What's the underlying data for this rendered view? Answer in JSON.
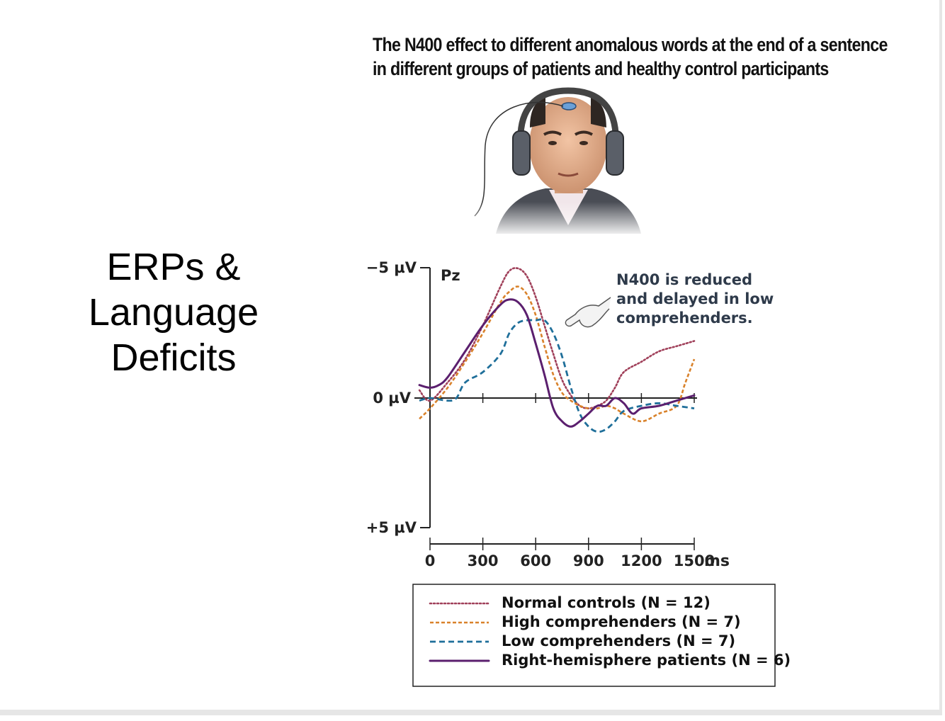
{
  "slide": {
    "title_lines": [
      "ERPs &",
      "Language",
      "Deficits"
    ]
  },
  "figure": {
    "title_lines": [
      "The N400 effect to different anomalous words at the end of a sentence",
      "in different groups of patients and healthy control participants"
    ],
    "electrode_label": "Pz",
    "annotation_lines": [
      "N400 is reduced",
      "and delayed in low",
      "comprehenders."
    ]
  },
  "colors": {
    "normal_controls": "#a0405a",
    "high_comprehenders": "#d9822b",
    "low_comprehenders": "#1f6f9a",
    "right_hemisphere": "#5b1f6e",
    "axis": "#222222"
  },
  "chart_data": {
    "type": "line",
    "y_reversed": true,
    "ylim": [
      -5,
      5
    ],
    "xlim": [
      0,
      1500
    ],
    "y_tick_labels": [
      "−5 µV",
      "0 µV",
      "+5 µV"
    ],
    "y_ticks": [
      -5,
      0,
      5
    ],
    "x_ticks": [
      0,
      300,
      600,
      900,
      1200,
      1500
    ],
    "x_tick_labels": [
      "0",
      "300",
      "600",
      "900",
      "1200",
      "1500"
    ],
    "x_unit": "ms",
    "grid": false,
    "legend_position": "bottom",
    "series": [
      {
        "name": "Normal controls (N = 12)",
        "style": "dotted",
        "color_key": "normal_controls",
        "x": [
          -60,
          0,
          100,
          200,
          300,
          400,
          450,
          500,
          550,
          600,
          650,
          700,
          750,
          800,
          850,
          900,
          950,
          1000,
          1050,
          1100,
          1200,
          1300,
          1400,
          1500
        ],
        "y": [
          -0.3,
          0.1,
          -0.6,
          -1.5,
          -2.8,
          -4.3,
          -4.9,
          -5.0,
          -4.7,
          -3.9,
          -2.8,
          -1.7,
          -0.7,
          -0.1,
          0.3,
          0.4,
          0.3,
          0.1,
          -0.4,
          -1.0,
          -1.4,
          -1.8,
          -2.0,
          -2.2
        ]
      },
      {
        "name": "High comprehenders (N = 7)",
        "style": "dashed-fine",
        "color_key": "high_comprehenders",
        "x": [
          -60,
          0,
          100,
          200,
          300,
          400,
          450,
          500,
          550,
          600,
          650,
          700,
          750,
          800,
          850,
          900,
          950,
          1000,
          1050,
          1100,
          1200,
          1300,
          1400,
          1450,
          1500
        ],
        "y": [
          0.8,
          0.4,
          -0.4,
          -1.4,
          -2.5,
          -3.7,
          -4.1,
          -4.3,
          -4.0,
          -3.2,
          -2.0,
          -0.9,
          -0.2,
          0.1,
          0.3,
          0.4,
          0.4,
          0.3,
          0.4,
          0.6,
          0.9,
          0.6,
          0.3,
          -0.6,
          -1.5
        ]
      },
      {
        "name": "Low comprehenders (N = 7)",
        "style": "dashed",
        "color_key": "low_comprehenders",
        "x": [
          -60,
          0,
          100,
          150,
          200,
          300,
          400,
          450,
          500,
          550,
          600,
          650,
          700,
          750,
          800,
          850,
          900,
          950,
          1000,
          1050,
          1100,
          1200,
          1300,
          1400,
          1500
        ],
        "y": [
          0.1,
          0.0,
          0.1,
          0.0,
          -0.6,
          -1.0,
          -1.7,
          -2.5,
          -2.9,
          -3.0,
          -3.0,
          -3.0,
          -2.5,
          -1.6,
          -0.4,
          0.6,
          1.1,
          1.3,
          1.2,
          0.9,
          0.5,
          0.3,
          0.2,
          0.3,
          0.4
        ]
      },
      {
        "name": "Right-hemisphere patients (N = 6)",
        "style": "solid",
        "color_key": "right_hemisphere",
        "x": [
          -60,
          0,
          50,
          100,
          200,
          300,
          400,
          450,
          500,
          550,
          600,
          650,
          700,
          750,
          800,
          850,
          900,
          950,
          1000,
          1050,
          1100,
          1150,
          1200,
          1300,
          1400,
          1500
        ],
        "y": [
          -0.5,
          -0.4,
          -0.5,
          -0.8,
          -1.8,
          -2.8,
          -3.6,
          -3.8,
          -3.7,
          -3.2,
          -2.1,
          -0.9,
          0.4,
          0.9,
          1.1,
          0.9,
          0.6,
          0.3,
          0.3,
          0.0,
          0.2,
          0.6,
          0.4,
          0.3,
          0.1,
          -0.1
        ]
      }
    ]
  }
}
